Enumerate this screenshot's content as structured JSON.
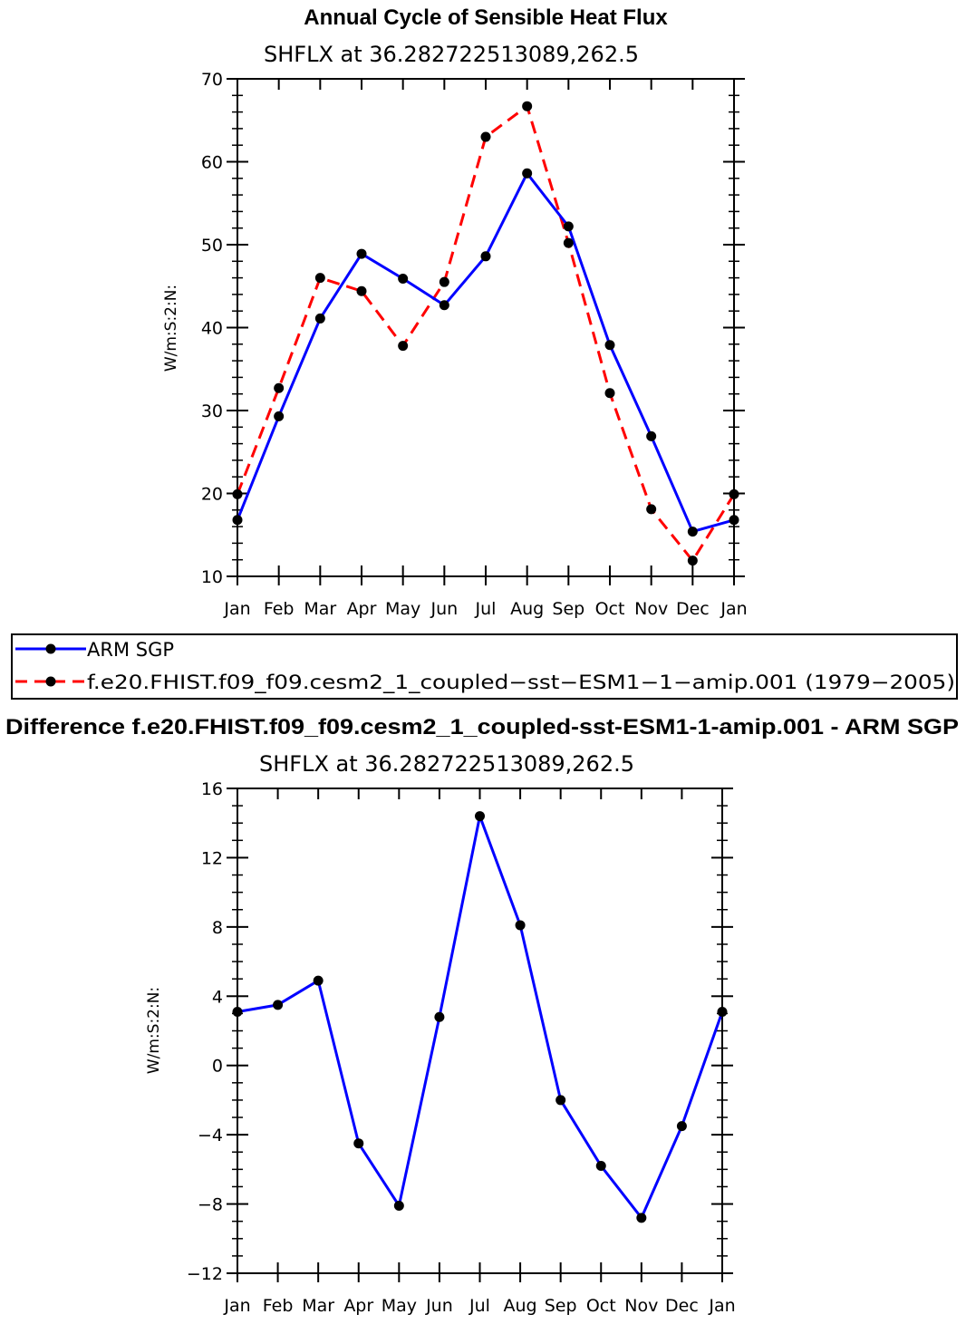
{
  "top": {
    "title": "Annual Cycle of Sensible Heat Flux",
    "subtitle": "SHFLX  at  36.282722513089,262.5",
    "ylabel": "W/m:S:2:N:"
  },
  "bottom": {
    "title": "Difference f.e20.FHIST.f09_f09.cesm2_1_coupled-sst-ESM1-1-amip.001 - ARM SGP",
    "subtitle": "SHFLX  at  36.282722513089,262.5",
    "ylabel": "W/m:S:2:N:"
  },
  "legend": {
    "items": [
      {
        "label": "ARM SGP",
        "color": "#0000ff",
        "style": "solid"
      },
      {
        "label": "f.e20.FHIST.f09_f09.cesm2_1_coupled−sst−ESM1−1−amip.001 (1979−2005)",
        "color": "#ff0000",
        "style": "dashed"
      }
    ]
  },
  "chart_data": [
    {
      "type": "line",
      "title": "Annual Cycle of Sensible Heat Flux",
      "subtitle": "SHFLX  at  36.282722513089,262.5",
      "xlabel": "",
      "ylabel": "W/m:S:2:N:",
      "categories": [
        "Jan",
        "Feb",
        "Mar",
        "Apr",
        "May",
        "Jun",
        "Jul",
        "Aug",
        "Sep",
        "Oct",
        "Nov",
        "Dec",
        "Jan"
      ],
      "ylim": [
        10,
        70
      ],
      "yticks": [
        10,
        20,
        30,
        40,
        50,
        60,
        70
      ],
      "series": [
        {
          "name": "ARM SGP",
          "color": "#0000ff",
          "style": "solid",
          "values": [
            16.8,
            29.3,
            41.1,
            48.9,
            45.9,
            42.7,
            48.6,
            58.6,
            52.2,
            37.9,
            26.9,
            15.4,
            16.8
          ]
        },
        {
          "name": "f.e20.FHIST.f09_f09.cesm2_1_coupled-sst-ESM1-1-amip.001 (1979-2005)",
          "color": "#ff0000",
          "style": "dashed",
          "values": [
            19.9,
            32.7,
            46.0,
            44.4,
            37.8,
            45.5,
            63.0,
            66.7,
            50.2,
            32.1,
            18.1,
            11.9,
            19.9
          ]
        }
      ]
    },
    {
      "type": "line",
      "title": "Difference f.e20.FHIST.f09_f09.cesm2_1_coupled-sst-ESM1-1-amip.001 - ARM SGP",
      "subtitle": "SHFLX  at  36.282722513089,262.5",
      "xlabel": "",
      "ylabel": "W/m:S:2:N:",
      "categories": [
        "Jan",
        "Feb",
        "Mar",
        "Apr",
        "May",
        "Jun",
        "Jul",
        "Aug",
        "Sep",
        "Oct",
        "Nov",
        "Dec",
        "Jan"
      ],
      "ylim": [
        -12,
        16
      ],
      "yticks": [
        -12,
        -8,
        -4,
        0,
        4,
        8,
        12,
        16
      ],
      "ytick_labels": [
        "−12",
        "−8",
        "−4",
        "0",
        "4",
        "8",
        "12",
        "16"
      ],
      "series": [
        {
          "name": "Difference",
          "color": "#0000ff",
          "style": "solid",
          "values": [
            3.1,
            3.5,
            4.9,
            -4.5,
            -8.1,
            2.8,
            14.4,
            8.1,
            -2.0,
            -5.8,
            -8.8,
            -3.5,
            3.1
          ]
        }
      ]
    }
  ]
}
